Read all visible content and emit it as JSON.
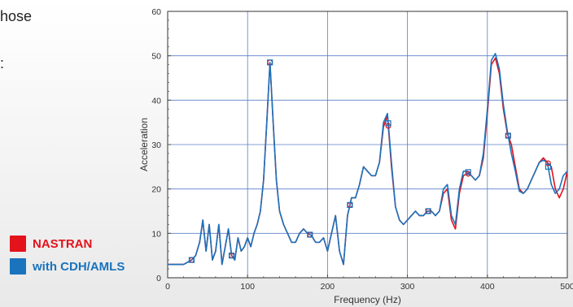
{
  "page": {
    "text_fragment_1": "hose",
    "text_fragment_2": ":"
  },
  "legend": {
    "items": [
      {
        "label": "NASTRAN",
        "color": "#e3121b"
      },
      {
        "label": "with CDH/AMLS",
        "color": "#1a73bd"
      }
    ]
  },
  "chart_data": {
    "type": "line",
    "title": "",
    "xlabel": "Frequency (Hz)",
    "ylabel": "Acceleration",
    "xlim": [
      0,
      500
    ],
    "ylim": [
      0,
      60
    ],
    "xticks": [
      "0",
      "100",
      "200",
      "300",
      "400",
      "500"
    ],
    "yticks": [
      "0",
      "10",
      "20",
      "30",
      "40",
      "50",
      "60"
    ],
    "grid": true,
    "series": [
      {
        "name": "NASTRAN",
        "color": "#e3121b",
        "marker": "circle",
        "x": [
          0,
          20,
          30,
          35,
          40,
          44,
          48,
          52,
          56,
          60,
          64,
          68,
          72,
          76,
          80,
          84,
          88,
          92,
          96,
          100,
          104,
          108,
          112,
          116,
          120,
          124,
          128,
          132,
          136,
          140,
          145,
          150,
          155,
          160,
          165,
          170,
          175,
          180,
          185,
          190,
          195,
          200,
          205,
          210,
          215,
          220,
          225,
          230,
          235,
          240,
          245,
          250,
          255,
          260,
          265,
          270,
          275,
          280,
          285,
          290,
          295,
          300,
          305,
          310,
          315,
          320,
          325,
          330,
          335,
          340,
          345,
          350,
          355,
          360,
          365,
          370,
          375,
          380,
          385,
          390,
          395,
          400,
          405,
          410,
          415,
          420,
          425,
          430,
          435,
          440,
          445,
          450,
          455,
          460,
          465,
          470,
          475,
          480,
          485,
          490,
          495,
          500
        ],
        "y": [
          3,
          3,
          4,
          5,
          8,
          13,
          6,
          12,
          4,
          6,
          12,
          3,
          7,
          11,
          5,
          4,
          9,
          6,
          7,
          9,
          7,
          10,
          12,
          15,
          22,
          35,
          48.5,
          35,
          22,
          15,
          12,
          10,
          8,
          8,
          10,
          11,
          10,
          9.5,
          8,
          8,
          9,
          6,
          10,
          14,
          6,
          3,
          14,
          18,
          18,
          21,
          25,
          24,
          23,
          23,
          26,
          34,
          36.5,
          25,
          16,
          13,
          12,
          13,
          14,
          15,
          14,
          14,
          15,
          15,
          14,
          15,
          19,
          20,
          13,
          11,
          19,
          23,
          23.5,
          23,
          22,
          23,
          27,
          37,
          48,
          49.5,
          46,
          38,
          32.5,
          30,
          25,
          20,
          19,
          20,
          22,
          24,
          26,
          27,
          26,
          25,
          20,
          18,
          20,
          24
        ]
      },
      {
        "name": "with CDH/AMLS",
        "color": "#1a73bd",
        "marker": "square",
        "x": [
          0,
          20,
          30,
          35,
          40,
          44,
          48,
          52,
          56,
          60,
          64,
          68,
          72,
          76,
          80,
          84,
          88,
          92,
          96,
          100,
          104,
          108,
          112,
          116,
          120,
          124,
          128,
          132,
          136,
          140,
          145,
          150,
          155,
          160,
          165,
          170,
          175,
          180,
          185,
          190,
          195,
          200,
          205,
          210,
          215,
          220,
          225,
          230,
          235,
          240,
          245,
          250,
          255,
          260,
          265,
          270,
          275,
          280,
          285,
          290,
          295,
          300,
          305,
          310,
          315,
          320,
          325,
          330,
          335,
          340,
          345,
          350,
          355,
          360,
          365,
          370,
          375,
          380,
          385,
          390,
          395,
          400,
          405,
          410,
          415,
          420,
          425,
          430,
          435,
          440,
          445,
          450,
          455,
          460,
          465,
          470,
          475,
          480,
          485,
          490,
          495,
          500
        ],
        "y": [
          3,
          3,
          4,
          5,
          8,
          13,
          6,
          12,
          4,
          6,
          12,
          3,
          7,
          11,
          5,
          4,
          9,
          6,
          7,
          9,
          7,
          10,
          12,
          15,
          22,
          35,
          48.5,
          35,
          22,
          15,
          12,
          10,
          8,
          8,
          10,
          11,
          10,
          9.5,
          8,
          8,
          9,
          6,
          10,
          14,
          6,
          3,
          14,
          18,
          18,
          21,
          25,
          24,
          23,
          23,
          26,
          35,
          37,
          26,
          16,
          13,
          12,
          13,
          14,
          15,
          14,
          14,
          15,
          15,
          14,
          15,
          20,
          21,
          14,
          12,
          20,
          24,
          24,
          23,
          22,
          23,
          28,
          38,
          49,
          50.5,
          47,
          39,
          33,
          28,
          24,
          19.5,
          19,
          20,
          22,
          24,
          26,
          26.5,
          26,
          21,
          19,
          20,
          23,
          24
        ]
      }
    ],
    "markers": {
      "x": [
        30,
        80,
        128,
        178,
        228,
        276,
        326,
        376,
        426,
        476
      ]
    }
  }
}
